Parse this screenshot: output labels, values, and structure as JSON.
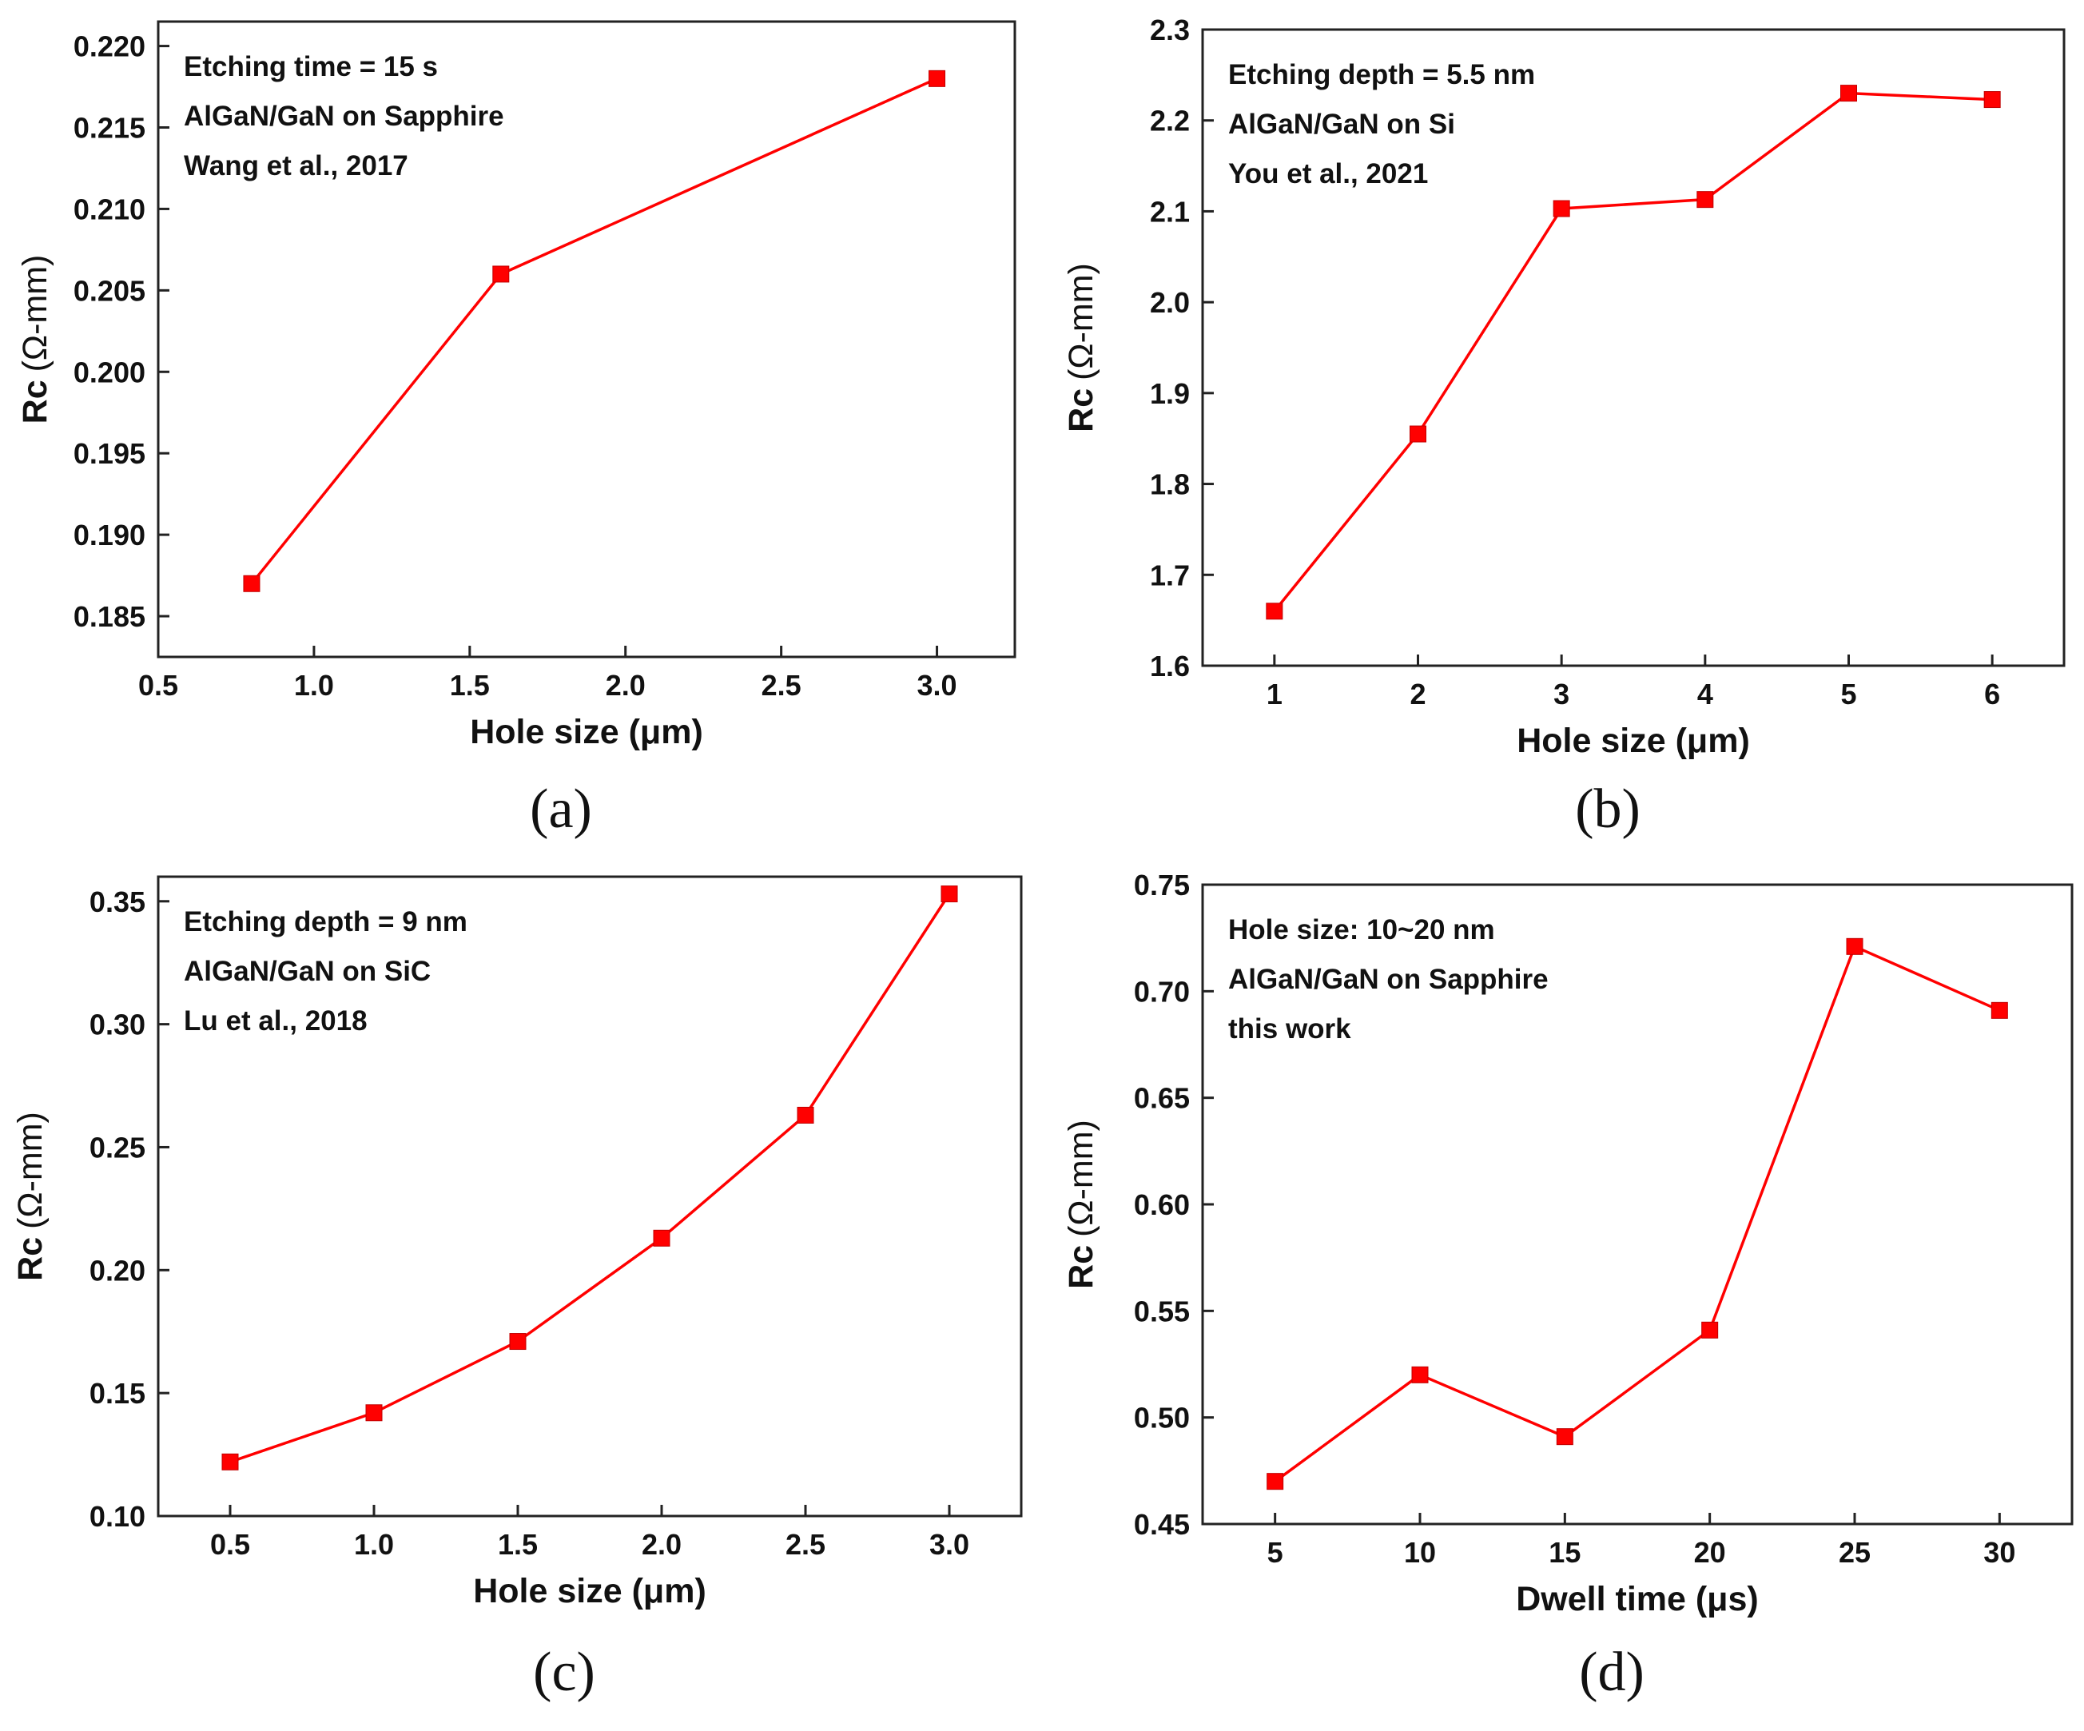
{
  "chart_data": [
    {
      "type": "line",
      "panel_label": "(a)",
      "xlabel": "Hole size (μm)",
      "ylabel_main": "Rc",
      "ylabel_unit": "(Ω-mm)",
      "xlim": [
        0.5,
        3.25
      ],
      "ylim": [
        0.1825,
        0.2215
      ],
      "xticks": [
        0.5,
        1.0,
        1.5,
        2.0,
        2.5,
        3.0
      ],
      "xtick_labels": [
        "0.5",
        "1.0",
        "1.5",
        "2.0",
        "2.5",
        "3.0"
      ],
      "yticks": [
        0.185,
        0.19,
        0.195,
        0.2,
        0.205,
        0.21,
        0.215,
        0.22
      ],
      "ytick_labels": [
        "0.185",
        "0.190",
        "0.195",
        "0.200",
        "0.205",
        "0.210",
        "0.215",
        "0.220"
      ],
      "annotations": [
        "Etching time = 15 s",
        "AlGaN/GaN on Sapphire",
        "Wang et al., 2017"
      ],
      "series": [
        {
          "name": "Rc",
          "x": [
            0.8,
            1.6,
            3.0
          ],
          "y": [
            0.187,
            0.206,
            0.218
          ],
          "color": "#ff0000"
        }
      ]
    },
    {
      "type": "line",
      "panel_label": "(b)",
      "xlabel": "Hole size (μm)",
      "ylabel_main": "Rc",
      "ylabel_unit": "(Ω-mm)",
      "xlim": [
        0.5,
        6.5
      ],
      "ylim": [
        1.6,
        2.3
      ],
      "xticks": [
        1,
        2,
        3,
        4,
        5,
        6
      ],
      "xtick_labels": [
        "1",
        "2",
        "3",
        "4",
        "5",
        "6"
      ],
      "yticks": [
        1.6,
        1.7,
        1.8,
        1.9,
        2.0,
        2.1,
        2.2,
        2.3
      ],
      "ytick_labels": [
        "1.6",
        "1.7",
        "1.8",
        "1.9",
        "2.0",
        "2.1",
        "2.2",
        "2.3"
      ],
      "annotations": [
        "Etching depth = 5.5 nm",
        "AlGaN/GaN on Si",
        "You et al., 2021"
      ],
      "series": [
        {
          "name": "Rc",
          "x": [
            1,
            2,
            3,
            4,
            5,
            6
          ],
          "y": [
            1.66,
            1.855,
            2.103,
            2.113,
            2.23,
            2.223
          ],
          "color": "#ff0000"
        }
      ]
    },
    {
      "type": "line",
      "panel_label": "(c)",
      "xlabel": "Hole size (μm)",
      "ylabel_main": "Rc",
      "ylabel_unit": "(Ω-mm)",
      "xlim": [
        0.25,
        3.25
      ],
      "ylim": [
        0.1,
        0.36
      ],
      "xticks": [
        0.5,
        1.0,
        1.5,
        2.0,
        2.5,
        3.0
      ],
      "xtick_labels": [
        "0.5",
        "1.0",
        "1.5",
        "2.0",
        "2.5",
        "3.0"
      ],
      "yticks": [
        0.1,
        0.15,
        0.2,
        0.25,
        0.3,
        0.35
      ],
      "ytick_labels": [
        "0.10",
        "0.15",
        "0.20",
        "0.25",
        "0.30",
        "0.35"
      ],
      "annotations": [
        "Etching depth = 9 nm",
        "AlGaN/GaN on SiC",
        "Lu et al., 2018"
      ],
      "series": [
        {
          "name": "Rc",
          "x": [
            0.5,
            1.0,
            1.5,
            2.0,
            2.5,
            3.0
          ],
          "y": [
            0.122,
            0.142,
            0.171,
            0.213,
            0.263,
            0.353
          ],
          "color": "#ff0000"
        }
      ]
    },
    {
      "type": "line",
      "panel_label": "(d)",
      "xlabel": "Dwell time (μs)",
      "ylabel_main": "Rc",
      "ylabel_unit": "(Ω-mm)",
      "xlim": [
        2.5,
        32.5
      ],
      "ylim": [
        0.45,
        0.75
      ],
      "xticks": [
        5,
        10,
        15,
        20,
        25,
        30
      ],
      "xtick_labels": [
        "5",
        "10",
        "15",
        "20",
        "25",
        "30"
      ],
      "yticks": [
        0.45,
        0.5,
        0.55,
        0.6,
        0.65,
        0.7,
        0.75
      ],
      "ytick_labels": [
        "0.45",
        "0.50",
        "0.55",
        "0.60",
        "0.65",
        "0.70",
        "0.75"
      ],
      "annotations": [
        "Hole size: 10~20 nm",
        "AlGaN/GaN on Sapphire",
        "this work"
      ],
      "series": [
        {
          "name": "Rc",
          "x": [
            5,
            10,
            15,
            20,
            25,
            30
          ],
          "y": [
            0.47,
            0.52,
            0.491,
            0.541,
            0.721,
            0.691
          ],
          "color": "#ff0000"
        }
      ]
    }
  ]
}
